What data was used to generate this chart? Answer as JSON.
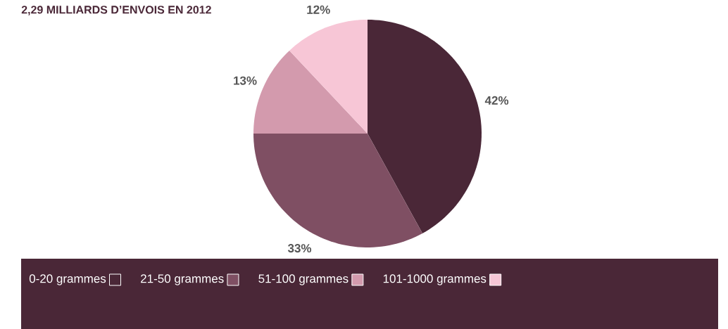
{
  "chart_data": {
    "type": "pie",
    "title": "2,29 MILLIARDS D’ENVOIS EN 2012",
    "categories": [
      "0-20 grammes",
      "21-50 grammes",
      "51-100 grammes",
      "101-1000 grammes"
    ],
    "values": [
      42,
      33,
      13,
      12
    ],
    "colors": [
      "#4a2737",
      "#7f4f63",
      "#d39aad",
      "#f7c6d6"
    ],
    "value_labels": [
      "42%",
      "33%",
      "13%",
      "12%"
    ],
    "legend": "bottom"
  }
}
